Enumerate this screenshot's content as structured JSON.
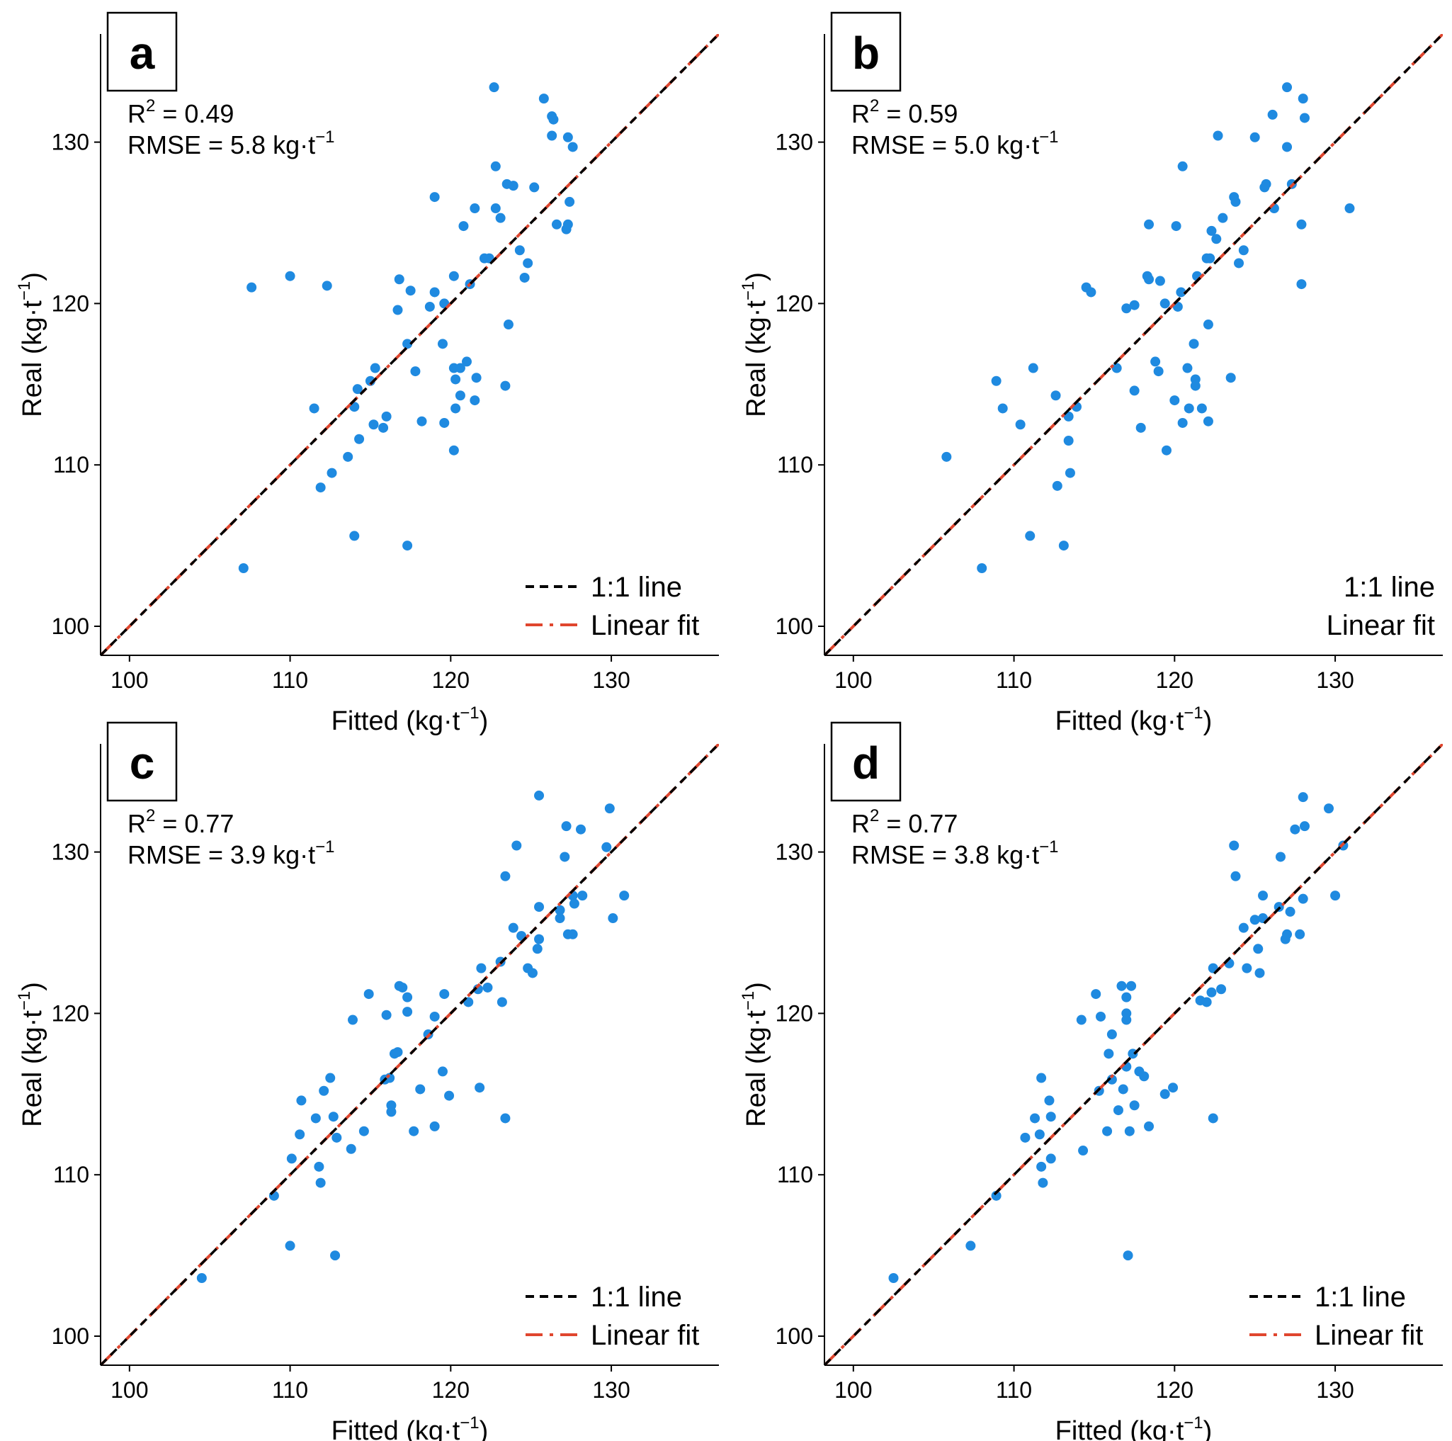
{
  "colors": {
    "points": "#1f8ae0",
    "one_to_one": "#000000",
    "linear_fit": "#e0462e",
    "axes": "#000000"
  },
  "chart_data": [
    {
      "panel": "a",
      "type": "scatter",
      "r2_label": "R",
      "r2_sup": "2",
      "r2_value": " = 0.49",
      "rmse_label": "RMSE = 5.8 kg·t",
      "rmse_sup": "−1",
      "xlabel": "Fitted (kg·t",
      "xlabel_sup": "−1",
      "xlabel_end": ")",
      "ylabel": "Real (kg·t",
      "ylabel_sup": "−1",
      "ylabel_end": ")",
      "xlim": [
        98.2,
        136.7
      ],
      "ylim": [
        98.2,
        136.7
      ],
      "xticks": [
        100,
        110,
        120,
        130
      ],
      "yticks": [
        100,
        110,
        120,
        130
      ],
      "legend": [
        {
          "label": "1:1 line",
          "style": "dashed",
          "color_key": "one_to_one",
          "visible": true
        },
        {
          "label": "Linear fit",
          "style": "dashdot",
          "color_key": "linear_fit",
          "visible": true
        }
      ],
      "fit_line": {
        "slope": 1.0,
        "intercept": 0.0
      },
      "points": [
        [
          107.6,
          121.0
        ],
        [
          110.0,
          121.7
        ],
        [
          112.3,
          121.1
        ],
        [
          107.1,
          103.6
        ],
        [
          111.5,
          113.5
        ],
        [
          111.9,
          108.6
        ],
        [
          112.6,
          109.5
        ],
        [
          113.6,
          110.5
        ],
        [
          114.0,
          113.6
        ],
        [
          114.3,
          111.6
        ],
        [
          114.2,
          114.7
        ],
        [
          115.0,
          115.2
        ],
        [
          115.2,
          112.5
        ],
        [
          115.3,
          116.0
        ],
        [
          115.8,
          112.3
        ],
        [
          116.0,
          113.0
        ],
        [
          116.7,
          119.6
        ],
        [
          116.8,
          121.5
        ],
        [
          117.5,
          120.8
        ],
        [
          117.3,
          117.5
        ],
        [
          117.8,
          115.8
        ],
        [
          118.2,
          112.7
        ],
        [
          118.7,
          119.8
        ],
        [
          119.0,
          120.7
        ],
        [
          119.0,
          126.6
        ],
        [
          119.5,
          117.5
        ],
        [
          119.6,
          112.6
        ],
        [
          119.6,
          120.0
        ],
        [
          120.2,
          121.7
        ],
        [
          120.2,
          116.0
        ],
        [
          120.3,
          115.3
        ],
        [
          120.3,
          113.5
        ],
        [
          120.2,
          110.9
        ],
        [
          120.6,
          116.0
        ],
        [
          120.6,
          114.3
        ],
        [
          120.8,
          124.8
        ],
        [
          121.0,
          116.4
        ],
        [
          121.2,
          121.2
        ],
        [
          121.5,
          125.9
        ],
        [
          121.5,
          114.0
        ],
        [
          121.6,
          115.4
        ],
        [
          122.1,
          122.8
        ],
        [
          122.4,
          122.8
        ],
        [
          122.7,
          133.4
        ],
        [
          122.8,
          128.5
        ],
        [
          122.8,
          125.9
        ],
        [
          123.1,
          125.3
        ],
        [
          123.4,
          114.9
        ],
        [
          123.5,
          127.4
        ],
        [
          123.6,
          118.7
        ],
        [
          123.9,
          127.3
        ],
        [
          124.3,
          123.3
        ],
        [
          124.6,
          121.6
        ],
        [
          124.8,
          122.5
        ],
        [
          125.2,
          127.2
        ],
        [
          125.8,
          132.7
        ],
        [
          126.3,
          131.6
        ],
        [
          126.4,
          131.4
        ],
        [
          126.3,
          130.4
        ],
        [
          126.6,
          124.9
        ],
        [
          127.2,
          124.6
        ],
        [
          127.3,
          124.9
        ],
        [
          127.4,
          126.3
        ],
        [
          127.3,
          130.3
        ],
        [
          127.6,
          129.7
        ],
        [
          114.0,
          105.6
        ],
        [
          117.3,
          105.0
        ]
      ]
    },
    {
      "panel": "b",
      "type": "scatter",
      "r2_label": "R",
      "r2_sup": "2",
      "r2_value": " = 0.59",
      "rmse_label": "RMSE = 5.0 kg·t",
      "rmse_sup": "−1",
      "xlabel": "Fitted (kg·t",
      "xlabel_sup": "−1",
      "xlabel_end": ")",
      "ylabel": "Real (kg·t",
      "ylabel_sup": "−1",
      "ylabel_end": ")",
      "xlim": [
        98.2,
        136.7
      ],
      "ylim": [
        98.2,
        136.7
      ],
      "xticks": [
        100,
        110,
        120,
        130
      ],
      "yticks": [
        100,
        110,
        120,
        130
      ],
      "legend": [
        {
          "label": "1:1 line",
          "style": "dashed",
          "color_key": "one_to_one",
          "visible": false
        },
        {
          "label": "Linear fit",
          "style": "dashdot",
          "color_key": "linear_fit",
          "visible": false
        }
      ],
      "fit_line": {
        "slope": 1.0,
        "intercept": 0.0
      },
      "points": [
        [
          105.8,
          110.5
        ],
        [
          108.0,
          103.6
        ],
        [
          108.9,
          115.2
        ],
        [
          109.3,
          113.5
        ],
        [
          110.4,
          112.5
        ],
        [
          111.0,
          105.6
        ],
        [
          111.2,
          116.0
        ],
        [
          112.6,
          114.3
        ],
        [
          112.7,
          108.7
        ],
        [
          113.1,
          105.0
        ],
        [
          113.4,
          111.5
        ],
        [
          113.4,
          113.0
        ],
        [
          113.5,
          109.5
        ],
        [
          113.9,
          113.6
        ],
        [
          114.5,
          121.0
        ],
        [
          114.8,
          120.7
        ],
        [
          116.4,
          116.0
        ],
        [
          117.0,
          119.7
        ],
        [
          117.5,
          119.9
        ],
        [
          117.5,
          114.6
        ],
        [
          117.9,
          112.3
        ],
        [
          118.3,
          121.7
        ],
        [
          118.4,
          121.5
        ],
        [
          118.4,
          124.9
        ],
        [
          118.8,
          116.4
        ],
        [
          119.0,
          115.8
        ],
        [
          119.1,
          121.4
        ],
        [
          119.4,
          120.0
        ],
        [
          119.5,
          110.9
        ],
        [
          120.0,
          114.0
        ],
        [
          120.1,
          124.8
        ],
        [
          120.2,
          119.8
        ],
        [
          120.4,
          120.7
        ],
        [
          120.5,
          128.5
        ],
        [
          120.5,
          112.6
        ],
        [
          120.8,
          116.0
        ],
        [
          120.9,
          113.5
        ],
        [
          121.2,
          117.5
        ],
        [
          121.3,
          115.3
        ],
        [
          121.3,
          114.9
        ],
        [
          121.4,
          121.7
        ],
        [
          121.7,
          113.5
        ],
        [
          122.0,
          122.8
        ],
        [
          122.1,
          118.7
        ],
        [
          122.2,
          122.8
        ],
        [
          122.3,
          124.5
        ],
        [
          122.1,
          112.7
        ],
        [
          122.6,
          124.0
        ],
        [
          122.7,
          130.4
        ],
        [
          123.0,
          125.3
        ],
        [
          123.5,
          115.4
        ],
        [
          123.7,
          126.6
        ],
        [
          123.8,
          126.3
        ],
        [
          124.0,
          122.5
        ],
        [
          124.3,
          123.3
        ],
        [
          125.0,
          130.3
        ],
        [
          125.6,
          127.2
        ],
        [
          125.7,
          127.4
        ],
        [
          126.1,
          131.7
        ],
        [
          126.2,
          125.9
        ],
        [
          127.0,
          133.4
        ],
        [
          127.0,
          129.7
        ],
        [
          127.3,
          127.4
        ],
        [
          127.9,
          124.9
        ],
        [
          127.9,
          121.2
        ],
        [
          128.0,
          132.7
        ],
        [
          128.1,
          131.5
        ],
        [
          130.9,
          125.9
        ]
      ]
    },
    {
      "panel": "c",
      "type": "scatter",
      "r2_label": "R",
      "r2_sup": "2",
      "r2_value": " = 0.77",
      "rmse_label": "RMSE = 3.9 kg·t",
      "rmse_sup": "−1",
      "xlabel": "Fitted (kg·t",
      "xlabel_sup": "−1",
      "xlabel_end": ")",
      "ylabel": "Real (kg·t",
      "ylabel_sup": "−1",
      "ylabel_end": ")",
      "xlim": [
        98.2,
        136.7
      ],
      "ylim": [
        98.2,
        136.7
      ],
      "xticks": [
        100,
        110,
        120,
        130
      ],
      "yticks": [
        100,
        110,
        120,
        130
      ],
      "legend": [
        {
          "label": "1:1 line",
          "style": "dashed",
          "color_key": "one_to_one",
          "visible": true
        },
        {
          "label": "Linear fit",
          "style": "dashdot",
          "color_key": "linear_fit",
          "visible": true
        }
      ],
      "fit_line": {
        "slope": 1.0,
        "intercept": 0.0
      },
      "points": [
        [
          104.5,
          103.6
        ],
        [
          109.0,
          108.7
        ],
        [
          110.0,
          105.6
        ],
        [
          110.1,
          111.0
        ],
        [
          110.6,
          112.5
        ],
        [
          110.7,
          114.6
        ],
        [
          111.6,
          113.5
        ],
        [
          111.8,
          110.5
        ],
        [
          111.9,
          109.5
        ],
        [
          112.1,
          115.2
        ],
        [
          112.5,
          116.0
        ],
        [
          112.7,
          113.6
        ],
        [
          112.9,
          112.3
        ],
        [
          112.8,
          105.0
        ],
        [
          113.8,
          111.6
        ],
        [
          113.9,
          119.6
        ],
        [
          114.6,
          112.7
        ],
        [
          114.9,
          121.2
        ],
        [
          115.9,
          115.9
        ],
        [
          116.0,
          119.9
        ],
        [
          116.2,
          116.0
        ],
        [
          116.3,
          114.3
        ],
        [
          116.3,
          113.9
        ],
        [
          116.5,
          117.5
        ],
        [
          116.7,
          117.6
        ],
        [
          116.8,
          121.7
        ],
        [
          117.0,
          121.6
        ],
        [
          117.3,
          121.0
        ],
        [
          117.3,
          120.1
        ],
        [
          117.7,
          112.7
        ],
        [
          118.1,
          115.3
        ],
        [
          118.6,
          118.7
        ],
        [
          119.0,
          119.8
        ],
        [
          119.0,
          113.0
        ],
        [
          119.5,
          116.4
        ],
        [
          119.6,
          121.2
        ],
        [
          119.9,
          114.9
        ],
        [
          121.1,
          120.7
        ],
        [
          121.7,
          121.5
        ],
        [
          121.8,
          115.4
        ],
        [
          121.9,
          122.8
        ],
        [
          122.3,
          121.6
        ],
        [
          123.1,
          123.2
        ],
        [
          123.2,
          120.7
        ],
        [
          123.4,
          128.5
        ],
        [
          123.4,
          113.5
        ],
        [
          123.9,
          125.3
        ],
        [
          124.1,
          130.4
        ],
        [
          124.4,
          124.8
        ],
        [
          124.8,
          122.8
        ],
        [
          125.1,
          122.5
        ],
        [
          125.4,
          124.0
        ],
        [
          125.5,
          126.6
        ],
        [
          125.5,
          133.5
        ],
        [
          125.5,
          124.6
        ],
        [
          126.8,
          126.4
        ],
        [
          126.8,
          125.9
        ],
        [
          127.1,
          129.7
        ],
        [
          127.2,
          131.6
        ],
        [
          127.3,
          124.9
        ],
        [
          127.6,
          124.9
        ],
        [
          127.6,
          127.3
        ],
        [
          127.7,
          126.8
        ],
        [
          128.1,
          131.4
        ],
        [
          128.2,
          127.3
        ],
        [
          129.7,
          130.3
        ],
        [
          129.9,
          132.7
        ],
        [
          130.1,
          125.9
        ],
        [
          130.8,
          127.3
        ]
      ]
    },
    {
      "panel": "d",
      "type": "scatter",
      "r2_label": "R",
      "r2_sup": "2",
      "r2_value": " = 0.77",
      "rmse_label": "RMSE = 3.8 kg·t",
      "rmse_sup": "−1",
      "xlabel": "Fitted (kg·t",
      "xlabel_sup": "−1",
      "xlabel_end": ")",
      "ylabel": "Real (kg·t",
      "ylabel_sup": "−1",
      "ylabel_end": ")",
      "xlim": [
        98.2,
        136.7
      ],
      "ylim": [
        98.2,
        136.7
      ],
      "xticks": [
        100,
        110,
        120,
        130
      ],
      "yticks": [
        100,
        110,
        120,
        130
      ],
      "legend": [
        {
          "label": "1:1 line",
          "style": "dashed",
          "color_key": "one_to_one",
          "visible": true
        },
        {
          "label": "Linear fit",
          "style": "dashdot",
          "color_key": "linear_fit",
          "visible": true
        }
      ],
      "fit_line": {
        "slope": 1.0,
        "intercept": 0.0
      },
      "points": [
        [
          102.5,
          103.6
        ],
        [
          107.3,
          105.6
        ],
        [
          108.9,
          108.7
        ],
        [
          110.7,
          112.3
        ],
        [
          111.3,
          113.5
        ],
        [
          111.6,
          112.5
        ],
        [
          111.7,
          110.5
        ],
        [
          111.7,
          116.0
        ],
        [
          111.8,
          109.5
        ],
        [
          112.2,
          114.6
        ],
        [
          112.3,
          113.6
        ],
        [
          112.3,
          111.0
        ],
        [
          114.2,
          119.6
        ],
        [
          114.3,
          111.5
        ],
        [
          115.1,
          121.2
        ],
        [
          115.3,
          115.2
        ],
        [
          115.4,
          119.8
        ],
        [
          115.8,
          112.7
        ],
        [
          115.9,
          117.5
        ],
        [
          116.1,
          118.7
        ],
        [
          116.1,
          115.9
        ],
        [
          116.5,
          114.0
        ],
        [
          116.7,
          121.7
        ],
        [
          116.8,
          115.3
        ],
        [
          117.0,
          116.7
        ],
        [
          117.0,
          120.0
        ],
        [
          117.0,
          119.6
        ],
        [
          117.0,
          121.0
        ],
        [
          117.2,
          112.7
        ],
        [
          117.1,
          105.0
        ],
        [
          117.3,
          121.7
        ],
        [
          117.4,
          117.5
        ],
        [
          117.5,
          114.3
        ],
        [
          117.8,
          116.4
        ],
        [
          118.1,
          116.1
        ],
        [
          118.4,
          113.0
        ],
        [
          119.4,
          115.0
        ],
        [
          119.9,
          115.4
        ],
        [
          121.6,
          120.8
        ],
        [
          122.0,
          120.7
        ],
        [
          122.3,
          121.3
        ],
        [
          122.4,
          113.5
        ],
        [
          122.4,
          122.8
        ],
        [
          122.9,
          121.5
        ],
        [
          123.4,
          123.1
        ],
        [
          123.7,
          130.4
        ],
        [
          123.8,
          128.5
        ],
        [
          124.3,
          125.3
        ],
        [
          124.5,
          122.8
        ],
        [
          125.0,
          125.8
        ],
        [
          125.2,
          124.0
        ],
        [
          125.3,
          122.5
        ],
        [
          125.5,
          125.9
        ],
        [
          125.5,
          127.3
        ],
        [
          126.5,
          126.6
        ],
        [
          126.6,
          129.7
        ],
        [
          126.9,
          124.6
        ],
        [
          127.0,
          124.9
        ],
        [
          127.2,
          126.3
        ],
        [
          127.5,
          131.4
        ],
        [
          127.8,
          124.9
        ],
        [
          128.0,
          133.4
        ],
        [
          128.0,
          127.1
        ],
        [
          128.1,
          131.6
        ],
        [
          129.6,
          132.7
        ],
        [
          130.0,
          127.3
        ],
        [
          130.5,
          130.4
        ]
      ]
    }
  ]
}
